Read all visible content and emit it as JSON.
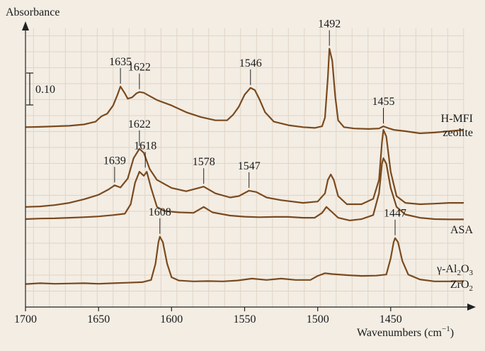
{
  "chart_data": {
    "type": "line",
    "ylabel": "Absorbance",
    "xlabel": "Wavenumbers (cm",
    "xlabel_sup": "−1",
    "xlabel_close": ")",
    "xlim": [
      1700,
      1400
    ],
    "x_direction": "descending",
    "xticks": [
      1700,
      1650,
      1600,
      1550,
      1500,
      1450
    ],
    "grid": true,
    "colors": {
      "line": "#7a4a1e",
      "grid": "#e0d4c4",
      "background": "#f3ede4",
      "axis": "#222222"
    },
    "scale_bar": {
      "label": "0.10",
      "value": 0.1
    },
    "ylim": [
      -0.08,
      0.95
    ],
    "series": [
      {
        "name_lines": [
          "H-MFI",
          "zeolite"
        ],
        "baseline": 0.585,
        "points": [
          [
            1700,
            0.585
          ],
          [
            1690,
            0.586
          ],
          [
            1680,
            0.588
          ],
          [
            1670,
            0.59
          ],
          [
            1660,
            0.595
          ],
          [
            1652,
            0.605
          ],
          [
            1648,
            0.625
          ],
          [
            1644,
            0.635
          ],
          [
            1640,
            0.665
          ],
          [
            1637,
            0.705
          ],
          [
            1635,
            0.735
          ],
          [
            1632,
            0.71
          ],
          [
            1630,
            0.69
          ],
          [
            1627,
            0.695
          ],
          [
            1624,
            0.71
          ],
          [
            1622,
            0.715
          ],
          [
            1619,
            0.712
          ],
          [
            1615,
            0.7
          ],
          [
            1610,
            0.685
          ],
          [
            1600,
            0.665
          ],
          [
            1590,
            0.64
          ],
          [
            1580,
            0.622
          ],
          [
            1570,
            0.61
          ],
          [
            1562,
            0.61
          ],
          [
            1558,
            0.63
          ],
          [
            1554,
            0.66
          ],
          [
            1550,
            0.705
          ],
          [
            1546,
            0.73
          ],
          [
            1543,
            0.722
          ],
          [
            1540,
            0.69
          ],
          [
            1536,
            0.64
          ],
          [
            1530,
            0.605
          ],
          [
            1520,
            0.592
          ],
          [
            1510,
            0.585
          ],
          [
            1502,
            0.582
          ],
          [
            1497,
            0.588
          ],
          [
            1495,
            0.62
          ],
          [
            1493,
            0.77
          ],
          [
            1492,
            0.875
          ],
          [
            1490,
            0.83
          ],
          [
            1488,
            0.7
          ],
          [
            1486,
            0.61
          ],
          [
            1482,
            0.585
          ],
          [
            1475,
            0.58
          ],
          [
            1465,
            0.578
          ],
          [
            1458,
            0.58
          ],
          [
            1455,
            0.588
          ],
          [
            1452,
            0.582
          ],
          [
            1448,
            0.575
          ],
          [
            1440,
            0.57
          ],
          [
            1430,
            0.562
          ],
          [
            1420,
            0.565
          ],
          [
            1410,
            0.57
          ],
          [
            1400,
            0.575
          ]
        ],
        "labels": [
          {
            "text": "1635",
            "x": 1635,
            "peak": 0.735
          },
          {
            "text": "1622",
            "x": 1622,
            "peak": 0.715
          },
          {
            "text": "1546",
            "x": 1546,
            "peak": 0.73
          },
          {
            "text": "1492",
            "x": 1492,
            "peak": 0.875
          },
          {
            "text": "1455",
            "x": 1455,
            "peak": 0.588
          }
        ]
      },
      {
        "name_lines": [
          "ASA"
        ],
        "baseline": 0.295,
        "points": [
          [
            1700,
            0.29
          ],
          [
            1690,
            0.292
          ],
          [
            1680,
            0.297
          ],
          [
            1670,
            0.305
          ],
          [
            1660,
            0.318
          ],
          [
            1650,
            0.335
          ],
          [
            1643,
            0.355
          ],
          [
            1639,
            0.37
          ],
          [
            1635,
            0.362
          ],
          [
            1630,
            0.395
          ],
          [
            1626,
            0.47
          ],
          [
            1622,
            0.505
          ],
          [
            1619,
            0.49
          ],
          [
            1615,
            0.43
          ],
          [
            1610,
            0.39
          ],
          [
            1600,
            0.36
          ],
          [
            1590,
            0.348
          ],
          [
            1578,
            0.365
          ],
          [
            1570,
            0.34
          ],
          [
            1560,
            0.325
          ],
          [
            1554,
            0.33
          ],
          [
            1547,
            0.35
          ],
          [
            1542,
            0.345
          ],
          [
            1535,
            0.325
          ],
          [
            1525,
            0.315
          ],
          [
            1510,
            0.305
          ],
          [
            1500,
            0.31
          ],
          [
            1495,
            0.34
          ],
          [
            1493,
            0.39
          ],
          [
            1491,
            0.41
          ],
          [
            1489,
            0.39
          ],
          [
            1486,
            0.33
          ],
          [
            1480,
            0.3
          ],
          [
            1470,
            0.3
          ],
          [
            1462,
            0.32
          ],
          [
            1458,
            0.39
          ],
          [
            1456,
            0.53
          ],
          [
            1455,
            0.575
          ],
          [
            1453,
            0.55
          ],
          [
            1450,
            0.42
          ],
          [
            1446,
            0.33
          ],
          [
            1440,
            0.305
          ],
          [
            1430,
            0.3
          ],
          [
            1420,
            0.302
          ],
          [
            1410,
            0.305
          ],
          [
            1400,
            0.305
          ]
        ],
        "labels": [
          {
            "text": "1639",
            "x": 1639,
            "peak": 0.37
          },
          {
            "text": "1622",
            "x": 1622,
            "peak": 0.505
          },
          {
            "text": "1618",
            "x": 1618,
            "peak": 0.425
          },
          {
            "text": "1578",
            "x": 1578,
            "peak": 0.365
          },
          {
            "text": "1547",
            "x": 1547,
            "peak": 0.35
          }
        ]
      },
      {
        "name_lines": [
          "γ-Al",
          "2",
          "O",
          "3"
        ],
        "baseline": 0.245,
        "points": [
          [
            1700,
            0.245
          ],
          [
            1690,
            0.247
          ],
          [
            1680,
            0.248
          ],
          [
            1670,
            0.25
          ],
          [
            1660,
            0.252
          ],
          [
            1650,
            0.255
          ],
          [
            1640,
            0.26
          ],
          [
            1632,
            0.265
          ],
          [
            1628,
            0.3
          ],
          [
            1625,
            0.38
          ],
          [
            1622,
            0.42
          ],
          [
            1619,
            0.405
          ],
          [
            1617,
            0.42
          ],
          [
            1614,
            0.36
          ],
          [
            1610,
            0.29
          ],
          [
            1605,
            0.275
          ],
          [
            1595,
            0.27
          ],
          [
            1585,
            0.268
          ],
          [
            1578,
            0.29
          ],
          [
            1572,
            0.27
          ],
          [
            1560,
            0.258
          ],
          [
            1550,
            0.254
          ],
          [
            1540,
            0.252
          ],
          [
            1530,
            0.253
          ],
          [
            1520,
            0.253
          ],
          [
            1510,
            0.25
          ],
          [
            1502,
            0.25
          ],
          [
            1497,
            0.268
          ],
          [
            1494,
            0.29
          ],
          [
            1491,
            0.275
          ],
          [
            1486,
            0.25
          ],
          [
            1478,
            0.24
          ],
          [
            1470,
            0.245
          ],
          [
            1462,
            0.26
          ],
          [
            1458,
            0.34
          ],
          [
            1456,
            0.45
          ],
          [
            1455,
            0.47
          ],
          [
            1453,
            0.45
          ],
          [
            1450,
            0.36
          ],
          [
            1446,
            0.29
          ],
          [
            1440,
            0.262
          ],
          [
            1430,
            0.25
          ],
          [
            1420,
            0.245
          ],
          [
            1410,
            0.244
          ],
          [
            1400,
            0.244
          ]
        ],
        "labels": []
      },
      {
        "name_lines": [
          "ZrO",
          "2"
        ],
        "baseline": 0.01,
        "points": [
          [
            1700,
            0.005
          ],
          [
            1690,
            0.008
          ],
          [
            1680,
            0.006
          ],
          [
            1670,
            0.007
          ],
          [
            1660,
            0.008
          ],
          [
            1650,
            0.006
          ],
          [
            1640,
            0.008
          ],
          [
            1630,
            0.01
          ],
          [
            1620,
            0.012
          ],
          [
            1614,
            0.02
          ],
          [
            1611,
            0.08
          ],
          [
            1609,
            0.16
          ],
          [
            1608,
            0.18
          ],
          [
            1606,
            0.16
          ],
          [
            1603,
            0.08
          ],
          [
            1600,
            0.03
          ],
          [
            1595,
            0.018
          ],
          [
            1585,
            0.015
          ],
          [
            1575,
            0.016
          ],
          [
            1565,
            0.015
          ],
          [
            1555,
            0.018
          ],
          [
            1545,
            0.025
          ],
          [
            1535,
            0.02
          ],
          [
            1525,
            0.025
          ],
          [
            1515,
            0.02
          ],
          [
            1505,
            0.02
          ],
          [
            1500,
            0.035
          ],
          [
            1495,
            0.045
          ],
          [
            1490,
            0.042
          ],
          [
            1480,
            0.038
          ],
          [
            1470,
            0.035
          ],
          [
            1460,
            0.036
          ],
          [
            1453,
            0.04
          ],
          [
            1450,
            0.1
          ],
          [
            1448,
            0.16
          ],
          [
            1447,
            0.175
          ],
          [
            1445,
            0.16
          ],
          [
            1442,
            0.09
          ],
          [
            1438,
            0.04
          ],
          [
            1430,
            0.022
          ],
          [
            1420,
            0.015
          ],
          [
            1410,
            0.015
          ],
          [
            1400,
            0.016
          ]
        ],
        "labels": [
          {
            "text": "1608",
            "x": 1608,
            "peak": 0.18
          },
          {
            "text": "1447",
            "x": 1447,
            "peak": 0.175
          }
        ]
      }
    ]
  }
}
